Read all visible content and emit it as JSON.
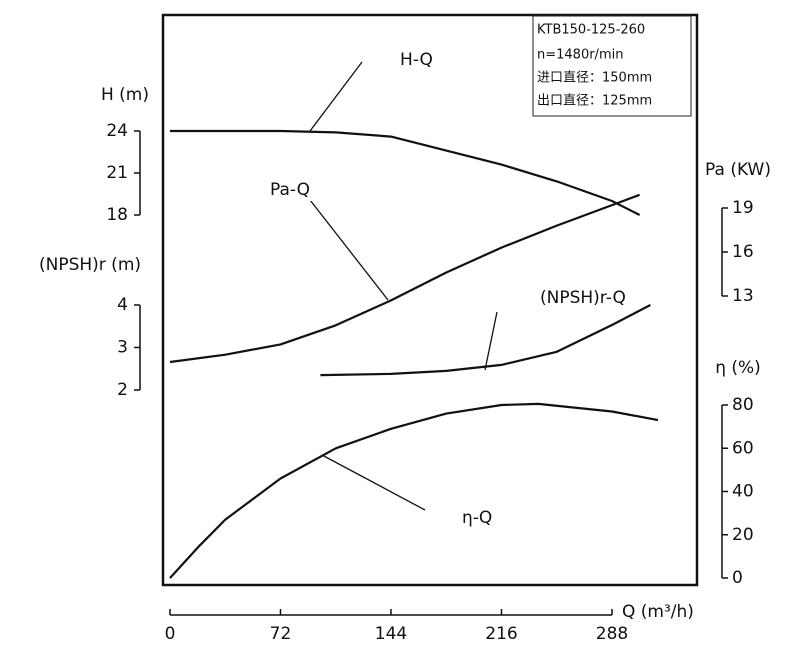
{
  "chart_data": {
    "type": "line",
    "info": [
      "KTB150-125-260",
      "n=1480r/min",
      "进口直径：150mm",
      "出口直径：125mm"
    ],
    "x_label": "Q (m³/h)",
    "xlim": [
      0,
      288
    ],
    "xticks": [
      0,
      72,
      144,
      216,
      288
    ],
    "grid": true,
    "yaxes": [
      {
        "label": "H (m)",
        "lim": [
          18,
          24
        ],
        "ticks": [
          18,
          21,
          24
        ],
        "side": "left"
      },
      {
        "label": "(NPSH)r (m)",
        "lim": [
          2,
          4
        ],
        "ticks": [
          2,
          3,
          4
        ],
        "side": "left"
      },
      {
        "label": "Pa (KW)",
        "lim": [
          13,
          19
        ],
        "ticks": [
          13,
          16,
          19
        ],
        "side": "right"
      },
      {
        "label": "η (%)",
        "lim": [
          0,
          80
        ],
        "ticks": [
          0,
          20,
          40,
          60,
          80
        ],
        "side": "right"
      }
    ],
    "series": [
      {
        "name": "H-Q",
        "axis": 0,
        "color": "#111111",
        "x": [
          0,
          36,
          72,
          108,
          144,
          180,
          216,
          252,
          288,
          306
        ],
        "values": [
          24,
          24,
          24,
          23.9,
          23.6,
          22.6,
          21.6,
          20.4,
          19,
          18
        ]
      },
      {
        "name": "(NPSH)r-Q",
        "axis": 1,
        "color": "#111111",
        "x": [
          98,
          144,
          180,
          216,
          252,
          288,
          313
        ],
        "values": [
          2.35,
          2.38,
          2.45,
          2.59,
          2.9,
          3.53,
          4
        ]
      },
      {
        "name": "Pa-Q",
        "axis": 2,
        "color": "#111111",
        "x": [
          0,
          36,
          72,
          108,
          144,
          180,
          216,
          252,
          288,
          306
        ],
        "values": [
          8.5,
          9,
          9.7,
          11,
          12.7,
          14.6,
          16.3,
          17.8,
          19.2,
          19.9
        ]
      },
      {
        "name": "η-Q",
        "axis": 3,
        "color": "#111111",
        "x": [
          0,
          18,
          36,
          72,
          108,
          144,
          180,
          216,
          240,
          288,
          318
        ],
        "values": [
          0,
          14,
          27,
          46,
          60,
          69,
          76,
          80,
          80.5,
          77,
          73
        ]
      }
    ]
  }
}
